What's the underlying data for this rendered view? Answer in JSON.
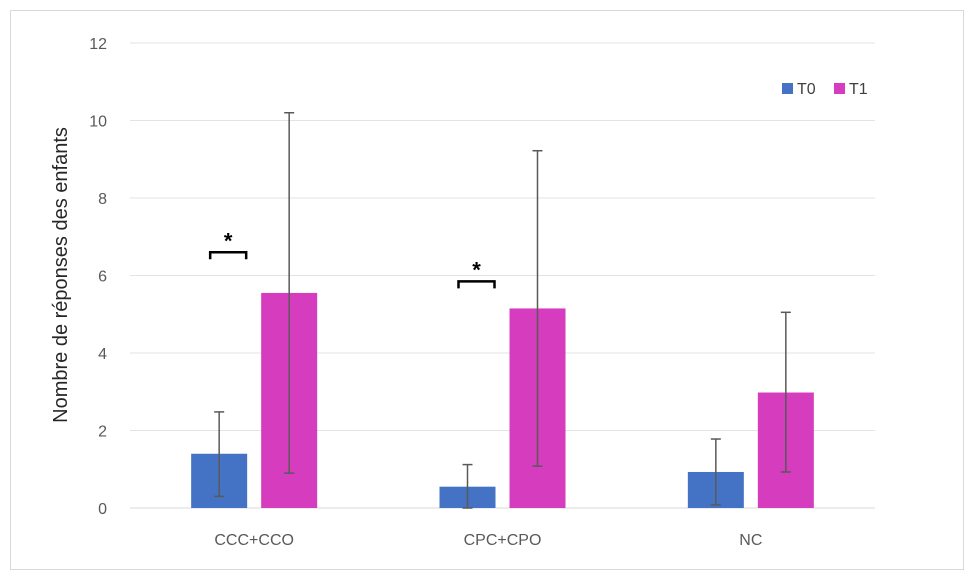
{
  "chart_data": {
    "type": "bar",
    "title": "",
    "xlabel": "",
    "ylabel": "Nombre de réponses des enfants",
    "ylim": [
      0,
      12
    ],
    "yticks": [
      0,
      2,
      4,
      6,
      8,
      10,
      12
    ],
    "grid": true,
    "legend_position": "top-right",
    "categories": [
      "CCC+CCO",
      "CPC+CPO",
      "NC"
    ],
    "series": [
      {
        "name": "T0",
        "color": "#4472C4",
        "values": [
          1.4,
          0.55,
          0.93
        ],
        "error_low": [
          0.3,
          0.0,
          0.08
        ],
        "error_high": [
          2.48,
          1.12,
          1.78
        ]
      },
      {
        "name": "T1",
        "color": "#D63CBE",
        "values": [
          5.55,
          5.15,
          2.98
        ],
        "error_low": [
          0.9,
          1.08,
          0.93
        ],
        "error_high": [
          10.2,
          9.22,
          5.05
        ]
      }
    ],
    "annotations": [
      {
        "label": "*",
        "category_index": 0,
        "y": 6.6
      },
      {
        "label": "*",
        "category_index": 1,
        "y": 5.85
      }
    ]
  }
}
